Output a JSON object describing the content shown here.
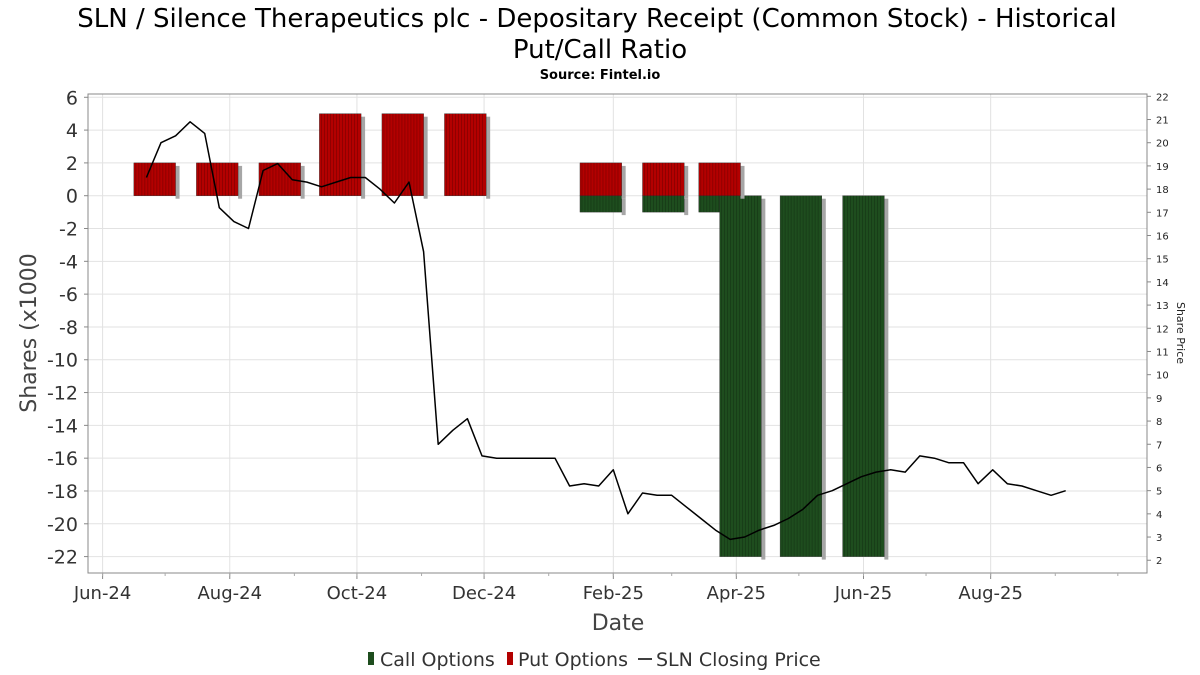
{
  "chart_data": {
    "type": "bar",
    "title_line1": "SLN / Silence Therapeutics plc - Depositary Receipt (Common Stock) - Historical",
    "title_line2": "Put/Call Ratio",
    "subtitle": "Source: Fintel.io",
    "xlabel": "Date",
    "ylabel": "Shares (x1000",
    "ylabel_right": "Share Price",
    "ylim": [
      -23,
      6.2
    ],
    "ylim_right": [
      1.45,
      22.1
    ],
    "xlim": [
      "2024-05-25",
      "2025-10-15"
    ],
    "y_ticks": [
      6,
      4,
      2,
      0,
      -2,
      -4,
      -6,
      -8,
      -10,
      -12,
      -14,
      -16,
      -18,
      -20,
      -22
    ],
    "y_ticks_right": [
      22,
      21,
      20,
      19,
      18,
      17,
      16,
      15,
      14,
      13,
      12,
      11,
      10,
      9,
      8,
      7,
      6,
      5,
      4,
      3,
      2
    ],
    "x_ticks": [
      {
        "label": "Jun-24",
        "date": "2024-06-01"
      },
      {
        "label": "Aug-24",
        "date": "2024-08-01"
      },
      {
        "label": "Oct-24",
        "date": "2024-10-01"
      },
      {
        "label": "Dec-24",
        "date": "2024-12-01"
      },
      {
        "label": "Feb-25",
        "date": "2025-02-01"
      },
      {
        "label": "Apr-25",
        "date": "2025-04-01"
      },
      {
        "label": "Jun-25",
        "date": "2025-06-01"
      },
      {
        "label": "Aug-25",
        "date": "2025-08-01"
      }
    ],
    "grid": true,
    "legend_position": "bottom",
    "series": [
      {
        "name": "Call Options",
        "color": "#1e4d1e",
        "bars": [
          {
            "start": "2025-01-16",
            "end": "2025-02-05",
            "value": -1
          },
          {
            "start": "2025-02-15",
            "end": "2025-03-07",
            "value": -1
          },
          {
            "start": "2025-03-14",
            "end": "2025-04-03",
            "value": -1
          },
          {
            "start": "2025-03-24",
            "end": "2025-04-13",
            "value": -22
          },
          {
            "start": "2025-04-22",
            "end": "2025-05-12",
            "value": -22
          },
          {
            "start": "2025-05-22",
            "end": "2025-06-11",
            "value": -22
          }
        ]
      },
      {
        "name": "Put Options",
        "color": "#b30000",
        "bars": [
          {
            "start": "2024-06-16",
            "end": "2024-07-06",
            "value": 2
          },
          {
            "start": "2024-07-16",
            "end": "2024-08-05",
            "value": 2
          },
          {
            "start": "2024-08-15",
            "end": "2024-09-04",
            "value": 2
          },
          {
            "start": "2024-09-13",
            "end": "2024-10-03",
            "value": 5
          },
          {
            "start": "2024-10-13",
            "end": "2024-11-02",
            "value": 5
          },
          {
            "start": "2024-11-12",
            "end": "2024-12-02",
            "value": 5
          },
          {
            "start": "2025-01-16",
            "end": "2025-02-05",
            "value": 2
          },
          {
            "start": "2025-02-15",
            "end": "2025-03-07",
            "value": 2
          },
          {
            "start": "2025-03-14",
            "end": "2025-04-03",
            "value": 2
          }
        ]
      },
      {
        "name": "SLN Closing Price",
        "color": "#000000",
        "axis": "right",
        "points": [
          [
            "2024-06-22",
            18.5
          ],
          [
            "2024-06-29",
            20
          ],
          [
            "2024-07-06",
            20.3
          ],
          [
            "2024-07-13",
            20.9
          ],
          [
            "2024-07-20",
            20.4
          ],
          [
            "2024-07-27",
            17.2
          ],
          [
            "2024-08-03",
            16.6
          ],
          [
            "2024-08-10",
            16.3
          ],
          [
            "2024-08-17",
            18.8
          ],
          [
            "2024-08-24",
            19.1
          ],
          [
            "2024-08-31",
            18.4
          ],
          [
            "2024-09-07",
            18.3
          ],
          [
            "2024-09-14",
            18.1
          ],
          [
            "2024-09-21",
            18.3
          ],
          [
            "2024-09-28",
            18.5
          ],
          [
            "2024-10-05",
            18.5
          ],
          [
            "2024-10-12",
            18
          ],
          [
            "2024-10-19",
            17.4
          ],
          [
            "2024-10-26",
            18.3
          ],
          [
            "2024-11-02",
            15.3
          ],
          [
            "2024-11-09",
            7
          ],
          [
            "2024-11-16",
            7.6
          ],
          [
            "2024-11-23",
            8.1
          ],
          [
            "2024-11-30",
            6.5
          ],
          [
            "2024-12-07",
            6.4
          ],
          [
            "2024-12-21",
            6.4
          ],
          [
            "2025-01-04",
            6.4
          ],
          [
            "2025-01-11",
            5.2
          ],
          [
            "2025-01-18",
            5.3
          ],
          [
            "2025-01-25",
            5.2
          ],
          [
            "2025-02-01",
            5.9
          ],
          [
            "2025-02-08",
            4
          ],
          [
            "2025-02-15",
            4.9
          ],
          [
            "2025-02-22",
            4.8
          ],
          [
            "2025-03-01",
            4.8
          ],
          [
            "2025-03-08",
            4.3
          ],
          [
            "2025-03-15",
            3.8
          ],
          [
            "2025-03-22",
            3.3
          ],
          [
            "2025-03-29",
            2.9
          ],
          [
            "2025-04-05",
            3
          ],
          [
            "2025-04-12",
            3.3
          ],
          [
            "2025-04-19",
            3.5
          ],
          [
            "2025-04-26",
            3.8
          ],
          [
            "2025-05-03",
            4.2
          ],
          [
            "2025-05-10",
            4.8
          ],
          [
            "2025-05-17",
            5
          ],
          [
            "2025-05-24",
            5.3
          ],
          [
            "2025-05-31",
            5.6
          ],
          [
            "2025-06-07",
            5.8
          ],
          [
            "2025-06-14",
            5.9
          ],
          [
            "2025-06-21",
            5.8
          ],
          [
            "2025-06-28",
            6.5
          ],
          [
            "2025-07-05",
            6.4
          ],
          [
            "2025-07-12",
            6.2
          ],
          [
            "2025-07-19",
            6.2
          ],
          [
            "2025-07-26",
            5.3
          ],
          [
            "2025-08-02",
            5.9
          ],
          [
            "2025-08-09",
            5.3
          ],
          [
            "2025-08-16",
            5.2
          ],
          [
            "2025-08-23",
            5.0
          ],
          [
            "2025-08-30",
            4.8
          ],
          [
            "2025-09-06",
            5.0
          ]
        ]
      }
    ]
  }
}
